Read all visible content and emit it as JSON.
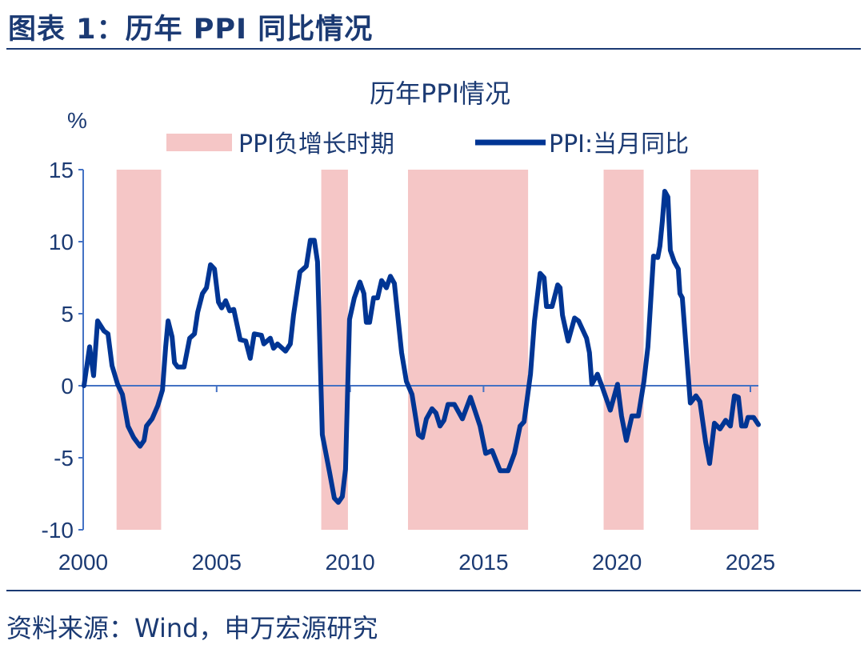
{
  "header": {
    "title": "图表 1：历年 PPI 同比情况"
  },
  "footer": {
    "source": "资料来源：Wind，申万宏源研究"
  },
  "colors": {
    "line": "#003594",
    "band": "#f5c6c6",
    "axis": "#4472c4",
    "text": "#1b3a73"
  },
  "chart_data": {
    "type": "line",
    "title": "历年PPI情况",
    "ylabel": "%",
    "xlabel": "",
    "xlim": [
      2000,
      2025.4
    ],
    "ylim": [
      -10,
      15
    ],
    "x_ticks": [
      "2000",
      "2005",
      "2010",
      "2015",
      "2020",
      "2025"
    ],
    "y_ticks": [
      "15",
      "10",
      "5",
      "0",
      "-5",
      "-10"
    ],
    "grid": false,
    "legend_position": "top",
    "bands": {
      "name": "PPI负增长时期",
      "ranges": [
        [
          2001.25,
          2002.92
        ],
        [
          2008.92,
          2009.92
        ],
        [
          2012.17,
          2016.67
        ],
        [
          2019.5,
          2021.0
        ],
        [
          2022.75,
          2025.3
        ]
      ]
    },
    "series": [
      {
        "name": "PPI:当月同比",
        "points": [
          [
            2000.03,
            0
          ],
          [
            2000.24,
            2.7
          ],
          [
            2000.39,
            0.7
          ],
          [
            2000.54,
            4.5
          ],
          [
            2000.78,
            3.8
          ],
          [
            2000.93,
            3.6
          ],
          [
            2001.08,
            1.4
          ],
          [
            2001.29,
            0.1
          ],
          [
            2001.47,
            -0.6
          ],
          [
            2001.68,
            -2.8
          ],
          [
            2001.89,
            -3.6
          ],
          [
            2002.13,
            -4.2
          ],
          [
            2002.28,
            -3.8
          ],
          [
            2002.37,
            -2.8
          ],
          [
            2002.58,
            -2.3
          ],
          [
            2002.79,
            -1.4
          ],
          [
            2002.97,
            -0.3
          ],
          [
            2003.09,
            2.7
          ],
          [
            2003.18,
            4.5
          ],
          [
            2003.33,
            3.4
          ],
          [
            2003.42,
            1.6
          ],
          [
            2003.54,
            1.3
          ],
          [
            2003.78,
            1.3
          ],
          [
            2003.99,
            3.3
          ],
          [
            2004.17,
            3.6
          ],
          [
            2004.29,
            5.1
          ],
          [
            2004.47,
            6.4
          ],
          [
            2004.62,
            6.8
          ],
          [
            2004.77,
            8.4
          ],
          [
            2004.92,
            8.1
          ],
          [
            2005.07,
            5.8
          ],
          [
            2005.19,
            5.4
          ],
          [
            2005.34,
            5.9
          ],
          [
            2005.49,
            5.2
          ],
          [
            2005.64,
            5.3
          ],
          [
            2005.79,
            4.0
          ],
          [
            2005.88,
            3.2
          ],
          [
            2006.09,
            3.1
          ],
          [
            2006.26,
            1.9
          ],
          [
            2006.41,
            3.6
          ],
          [
            2006.68,
            3.5
          ],
          [
            2006.77,
            2.9
          ],
          [
            2007.01,
            3.3
          ],
          [
            2007.13,
            2.6
          ],
          [
            2007.28,
            2.9
          ],
          [
            2007.58,
            2.4
          ],
          [
            2007.76,
            2.9
          ],
          [
            2007.88,
            4.9
          ],
          [
            2008.12,
            7.9
          ],
          [
            2008.36,
            8.3
          ],
          [
            2008.51,
            10.1
          ],
          [
            2008.66,
            10.1
          ],
          [
            2008.78,
            8.6
          ],
          [
            2008.96,
            -3.4
          ],
          [
            2009.23,
            -6.0
          ],
          [
            2009.41,
            -7.8
          ],
          [
            2009.56,
            -8.1
          ],
          [
            2009.71,
            -7.7
          ],
          [
            2009.83,
            -5.8
          ],
          [
            2009.98,
            4.6
          ],
          [
            2010.16,
            6.1
          ],
          [
            2010.37,
            7.2
          ],
          [
            2010.52,
            6.4
          ],
          [
            2010.61,
            4.4
          ],
          [
            2010.73,
            4.4
          ],
          [
            2010.88,
            6.1
          ],
          [
            2011.03,
            6.1
          ],
          [
            2011.18,
            7.3
          ],
          [
            2011.36,
            6.8
          ],
          [
            2011.51,
            7.6
          ],
          [
            2011.66,
            7.1
          ],
          [
            2011.93,
            2.3
          ],
          [
            2012.11,
            0.3
          ],
          [
            2012.32,
            -0.6
          ],
          [
            2012.56,
            -3.4
          ],
          [
            2012.71,
            -3.6
          ],
          [
            2012.86,
            -2.3
          ],
          [
            2013.07,
            -1.6
          ],
          [
            2013.22,
            -1.9
          ],
          [
            2013.37,
            -2.8
          ],
          [
            2013.52,
            -2.4
          ],
          [
            2013.67,
            -1.3
          ],
          [
            2013.91,
            -1.3
          ],
          [
            2014.21,
            -2.3
          ],
          [
            2014.51,
            -0.8
          ],
          [
            2014.87,
            -2.8
          ],
          [
            2015.08,
            -4.7
          ],
          [
            2015.32,
            -4.5
          ],
          [
            2015.62,
            -5.9
          ],
          [
            2015.92,
            -5.9
          ],
          [
            2016.16,
            -4.7
          ],
          [
            2016.37,
            -2.8
          ],
          [
            2016.52,
            -2.5
          ],
          [
            2016.76,
            0.8
          ],
          [
            2016.91,
            4.5
          ],
          [
            2017.12,
            7.8
          ],
          [
            2017.27,
            7.5
          ],
          [
            2017.36,
            5.5
          ],
          [
            2017.57,
            5.5
          ],
          [
            2017.78,
            7.0
          ],
          [
            2017.87,
            6.8
          ],
          [
            2017.96,
            4.9
          ],
          [
            2018.17,
            3.1
          ],
          [
            2018.41,
            4.7
          ],
          [
            2018.56,
            4.5
          ],
          [
            2018.86,
            3.3
          ],
          [
            2018.97,
            2.3
          ],
          [
            2019.06,
            0.1
          ],
          [
            2019.27,
            0.8
          ],
          [
            2019.45,
            -0.1
          ],
          [
            2019.75,
            -1.7
          ],
          [
            2020.02,
            0.1
          ],
          [
            2020.17,
            -2.1
          ],
          [
            2020.35,
            -3.8
          ],
          [
            2020.56,
            -2.1
          ],
          [
            2020.8,
            -2.1
          ],
          [
            2021.01,
            0.3
          ],
          [
            2021.16,
            2.7
          ],
          [
            2021.37,
            9.0
          ],
          [
            2021.53,
            8.9
          ],
          [
            2021.61,
            9.7
          ],
          [
            2021.7,
            11.4
          ],
          [
            2021.79,
            13.5
          ],
          [
            2021.91,
            13.1
          ],
          [
            2022.0,
            9.4
          ],
          [
            2022.15,
            8.6
          ],
          [
            2022.3,
            8.1
          ],
          [
            2022.36,
            6.4
          ],
          [
            2022.45,
            6.1
          ],
          [
            2022.75,
            -1.2
          ],
          [
            2022.96,
            -0.7
          ],
          [
            2023.11,
            -1.1
          ],
          [
            2023.32,
            -3.9
          ],
          [
            2023.47,
            -5.4
          ],
          [
            2023.65,
            -2.6
          ],
          [
            2023.86,
            -3.0
          ],
          [
            2024.07,
            -2.4
          ],
          [
            2024.25,
            -2.8
          ],
          [
            2024.4,
            -0.7
          ],
          [
            2024.55,
            -0.8
          ],
          [
            2024.67,
            -2.8
          ],
          [
            2024.82,
            -2.8
          ],
          [
            2024.91,
            -2.2
          ],
          [
            2025.12,
            -2.2
          ],
          [
            2025.3,
            -2.7
          ]
        ]
      }
    ]
  }
}
